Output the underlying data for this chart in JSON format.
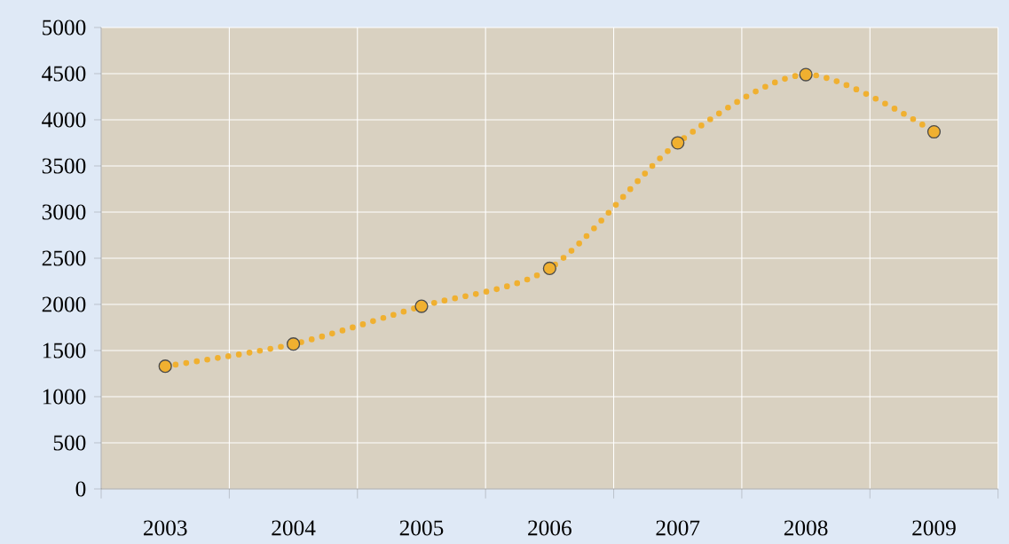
{
  "chart_data": {
    "type": "line",
    "categories": [
      "2003",
      "2004",
      "2005",
      "2006",
      "2007",
      "2008",
      "2009"
    ],
    "series": [
      {
        "color": "#f0b030",
        "values": [
          1330,
          1570,
          1980,
          2390,
          3750,
          4490,
          3870
        ]
      }
    ],
    "ylim": [
      0,
      5000
    ],
    "yticks": [
      0,
      500,
      1000,
      1500,
      2000,
      2500,
      3000,
      3500,
      4000,
      4500,
      5000
    ],
    "grid": true,
    "marker": "circle",
    "line_style": "dotted"
  }
}
